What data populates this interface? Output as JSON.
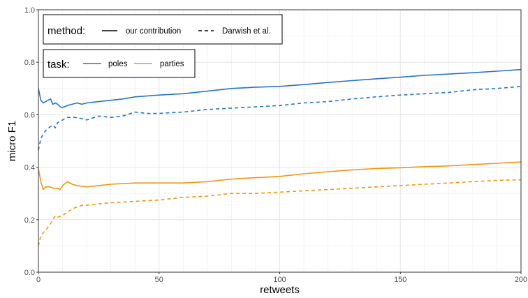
{
  "chart_data": {
    "type": "line",
    "xlabel": "retweets",
    "ylabel": "micro F1",
    "xlim": [
      0,
      200
    ],
    "ylim": [
      0,
      1
    ],
    "x_ticks": [
      "0",
      "50",
      "100",
      "150",
      "200"
    ],
    "y_ticks": [
      "0.0",
      "0.2",
      "0.4",
      "0.6",
      "0.8",
      "1.0"
    ],
    "grid": true,
    "legends": [
      {
        "title": "method:",
        "items": [
          {
            "label": "our contribution",
            "dash": "solid"
          },
          {
            "label": "Darwish et al.",
            "dash": "dashed"
          }
        ]
      },
      {
        "title": "task:",
        "items": [
          {
            "label": "poles",
            "color": "#2574c7"
          },
          {
            "label": "parties",
            "color": "#f2950f"
          }
        ]
      }
    ],
    "series": [
      {
        "task": "poles",
        "method": "our contribution",
        "color": "#2574c7",
        "dash": "solid",
        "x": [
          0,
          1,
          2,
          3,
          5,
          6,
          7,
          8,
          9,
          10,
          12,
          14,
          16,
          18,
          20,
          25,
          30,
          35,
          40,
          50,
          60,
          70,
          80,
          90,
          100,
          110,
          120,
          130,
          140,
          150,
          160,
          170,
          180,
          190,
          200
        ],
        "y": [
          0.7,
          0.655,
          0.645,
          0.65,
          0.66,
          0.64,
          0.645,
          0.64,
          0.63,
          0.628,
          0.635,
          0.64,
          0.645,
          0.64,
          0.645,
          0.65,
          0.655,
          0.66,
          0.668,
          0.675,
          0.68,
          0.69,
          0.7,
          0.705,
          0.708,
          0.715,
          0.723,
          0.73,
          0.737,
          0.743,
          0.75,
          0.755,
          0.76,
          0.766,
          0.772
        ]
      },
      {
        "task": "poles",
        "method": "Darwish et al.",
        "color": "#2574c7",
        "dash": "dashed",
        "x": [
          0,
          1,
          2,
          3,
          5,
          6,
          7,
          8,
          10,
          12,
          15,
          18,
          20,
          25,
          30,
          35,
          40,
          45,
          50,
          60,
          70,
          80,
          90,
          100,
          110,
          120,
          130,
          140,
          150,
          160,
          170,
          180,
          190,
          200
        ],
        "y": [
          0.465,
          0.51,
          0.525,
          0.54,
          0.555,
          0.56,
          0.55,
          0.57,
          0.58,
          0.59,
          0.59,
          0.585,
          0.58,
          0.595,
          0.59,
          0.595,
          0.61,
          0.605,
          0.605,
          0.61,
          0.62,
          0.625,
          0.63,
          0.635,
          0.645,
          0.65,
          0.66,
          0.668,
          0.675,
          0.68,
          0.685,
          0.695,
          0.7,
          0.708
        ]
      },
      {
        "task": "parties",
        "method": "our contribution",
        "color": "#f2950f",
        "dash": "solid",
        "x": [
          0,
          1,
          2,
          3,
          5,
          6,
          7,
          8,
          9,
          10,
          12,
          14,
          16,
          20,
          25,
          30,
          40,
          50,
          60,
          70,
          80,
          90,
          100,
          110,
          120,
          130,
          140,
          150,
          160,
          170,
          180,
          190,
          200
        ],
        "y": [
          0.395,
          0.345,
          0.315,
          0.325,
          0.325,
          0.32,
          0.32,
          0.32,
          0.315,
          0.33,
          0.345,
          0.335,
          0.33,
          0.325,
          0.33,
          0.335,
          0.34,
          0.34,
          0.34,
          0.345,
          0.355,
          0.36,
          0.365,
          0.375,
          0.383,
          0.39,
          0.395,
          0.398,
          0.402,
          0.405,
          0.41,
          0.415,
          0.42
        ]
      },
      {
        "task": "parties",
        "method": "Darwish et al.",
        "color": "#f2950f",
        "dash": "dashed",
        "x": [
          0,
          1,
          2,
          3,
          5,
          6,
          7,
          8,
          10,
          12,
          15,
          18,
          20,
          25,
          30,
          40,
          50,
          60,
          70,
          80,
          90,
          100,
          110,
          120,
          130,
          140,
          150,
          160,
          170,
          180,
          190,
          200
        ],
        "y": [
          0.1,
          0.14,
          0.15,
          0.16,
          0.185,
          0.2,
          0.215,
          0.21,
          0.215,
          0.23,
          0.245,
          0.255,
          0.255,
          0.26,
          0.265,
          0.27,
          0.275,
          0.285,
          0.29,
          0.3,
          0.3,
          0.305,
          0.31,
          0.315,
          0.32,
          0.325,
          0.33,
          0.335,
          0.34,
          0.345,
          0.35,
          0.352
        ]
      }
    ]
  }
}
